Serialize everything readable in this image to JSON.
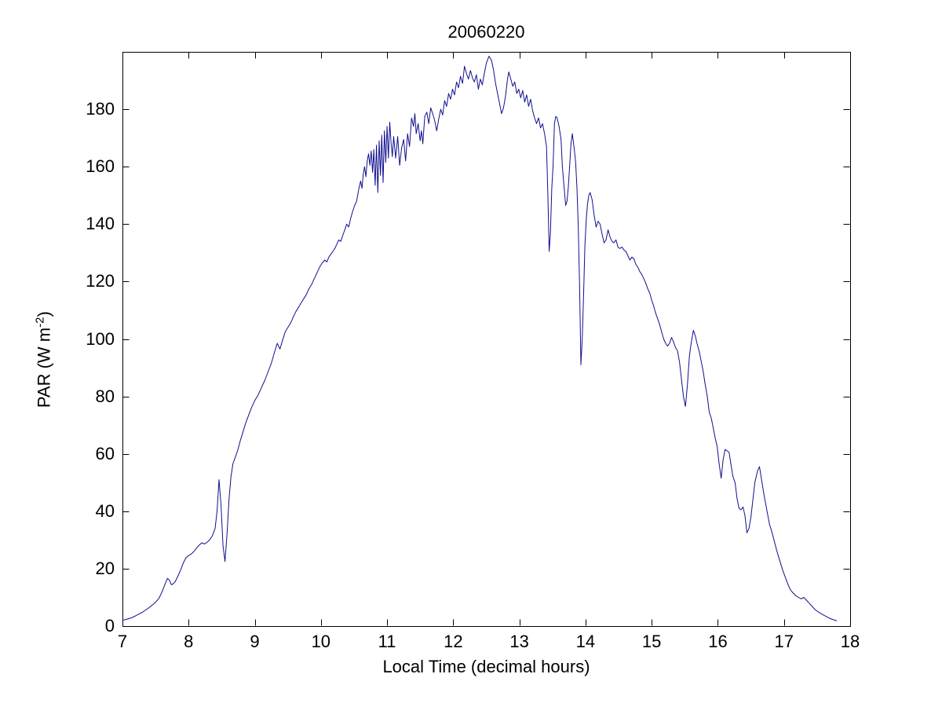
{
  "figure": {
    "title": "20060220",
    "xlabel": "Local Time (decimal hours)",
    "ylabel_main": "PAR (W m",
    "ylabel_sup": "-2",
    "ylabel_close": ")",
    "background_color": "#ffffff",
    "axis_color": "#000000",
    "line_color": "#10108e"
  },
  "chart_data": {
    "type": "line",
    "title": "20060220",
    "xlabel": "Local Time (decimal hours)",
    "ylabel": "PAR (W m^-2)",
    "xlim": [
      7,
      18
    ],
    "ylim": [
      0,
      200
    ],
    "xticks": [
      7,
      8,
      9,
      10,
      11,
      12,
      13,
      14,
      15,
      16,
      17,
      18
    ],
    "yticks": [
      0,
      20,
      40,
      60,
      80,
      100,
      120,
      140,
      160,
      180
    ],
    "grid": false,
    "box": true,
    "series": [
      {
        "name": "PAR",
        "color": "#10108e",
        "x": [
          7.0,
          7.05,
          7.1,
          7.15,
          7.2,
          7.25,
          7.3,
          7.35,
          7.4,
          7.45,
          7.5,
          7.55,
          7.6,
          7.65,
          7.68,
          7.71,
          7.74,
          7.77,
          7.8,
          7.84,
          7.88,
          7.92,
          7.96,
          8.0,
          8.04,
          8.08,
          8.12,
          8.16,
          8.2,
          8.24,
          8.28,
          8.32,
          8.36,
          8.4,
          8.43,
          8.46,
          8.49,
          8.52,
          8.55,
          8.58,
          8.61,
          8.64,
          8.67,
          8.7,
          8.74,
          8.78,
          8.82,
          8.86,
          8.9,
          8.95,
          9.0,
          9.05,
          9.1,
          9.15,
          9.2,
          9.25,
          9.3,
          9.34,
          9.38,
          9.42,
          9.46,
          9.5,
          9.54,
          9.58,
          9.62,
          9.66,
          9.7,
          9.74,
          9.78,
          9.82,
          9.86,
          9.9,
          9.94,
          9.98,
          10.02,
          10.06,
          10.09,
          10.12,
          10.15,
          10.18,
          10.21,
          10.24,
          10.27,
          10.3,
          10.33,
          10.36,
          10.39,
          10.42,
          10.45,
          10.48,
          10.51,
          10.54,
          10.57,
          10.6,
          10.62,
          10.64,
          10.66,
          10.68,
          10.7,
          10.72,
          10.74,
          10.76,
          10.78,
          10.8,
          10.82,
          10.84,
          10.86,
          10.88,
          10.9,
          10.92,
          10.94,
          10.96,
          10.98,
          11.0,
          11.02,
          11.04,
          11.06,
          11.08,
          11.1,
          11.13,
          11.16,
          11.19,
          11.22,
          11.25,
          11.28,
          11.31,
          11.34,
          11.37,
          11.4,
          11.42,
          11.44,
          11.47,
          11.5,
          11.52,
          11.54,
          11.57,
          11.6,
          11.63,
          11.66,
          11.69,
          11.72,
          11.75,
          11.78,
          11.81,
          11.84,
          11.87,
          11.9,
          11.93,
          11.96,
          11.99,
          12.02,
          12.05,
          12.08,
          12.11,
          12.14,
          12.17,
          12.2,
          12.23,
          12.26,
          12.29,
          12.32,
          12.35,
          12.38,
          12.41,
          12.44,
          12.47,
          12.5,
          12.54,
          12.58,
          12.61,
          12.64,
          12.67,
          12.7,
          12.73,
          12.76,
          12.79,
          12.82,
          12.84,
          12.87,
          12.9,
          12.93,
          12.96,
          12.99,
          13.02,
          13.05,
          13.08,
          13.11,
          13.14,
          13.17,
          13.2,
          13.23,
          13.26,
          13.29,
          13.32,
          13.35,
          13.38,
          13.41,
          13.43,
          13.45,
          13.47,
          13.49,
          13.51,
          13.53,
          13.55,
          13.57,
          13.6,
          13.63,
          13.65,
          13.67,
          13.7,
          13.72,
          13.74,
          13.76,
          13.78,
          13.8,
          13.83,
          13.85,
          13.87,
          13.89,
          13.91,
          13.93,
          13.95,
          13.97,
          13.99,
          14.01,
          14.03,
          14.05,
          14.07,
          14.1,
          14.13,
          14.16,
          14.19,
          14.22,
          14.25,
          14.28,
          14.31,
          14.34,
          14.37,
          14.4,
          14.43,
          14.46,
          14.49,
          14.52,
          14.55,
          14.58,
          14.61,
          14.64,
          14.67,
          14.7,
          14.73,
          14.76,
          14.79,
          14.82,
          14.85,
          14.88,
          14.91,
          14.94,
          14.97,
          15.0,
          15.03,
          15.06,
          15.09,
          15.12,
          15.15,
          15.18,
          15.21,
          15.24,
          15.27,
          15.3,
          15.33,
          15.36,
          15.39,
          15.42,
          15.45,
          15.48,
          15.51,
          15.54,
          15.57,
          15.6,
          15.63,
          15.66,
          15.69,
          15.72,
          15.75,
          15.78,
          15.81,
          15.84,
          15.87,
          15.9,
          15.93,
          15.96,
          15.99,
          16.02,
          16.05,
          16.08,
          16.11,
          16.14,
          16.17,
          16.2,
          16.23,
          16.26,
          16.29,
          16.32,
          16.35,
          16.38,
          16.41,
          16.44,
          16.47,
          16.5,
          16.53,
          16.56,
          16.6,
          16.63,
          16.66,
          16.7,
          16.74,
          16.78,
          16.82,
          16.86,
          16.9,
          16.94,
          16.98,
          17.02,
          17.06,
          17.1,
          17.14,
          17.18,
          17.22,
          17.26,
          17.3,
          17.34,
          17.38,
          17.42,
          17.46,
          17.5,
          17.55,
          17.6,
          17.65,
          17.7,
          17.75,
          17.8
        ],
        "y": [
          2.0,
          2.3,
          2.6,
          3.0,
          3.6,
          4.2,
          4.8,
          5.6,
          6.4,
          7.3,
          8.3,
          9.6,
          12.0,
          15.0,
          16.6,
          16.0,
          14.4,
          14.8,
          15.6,
          17.5,
          19.6,
          22.0,
          23.8,
          24.6,
          25.1,
          26.0,
          27.2,
          28.2,
          29.0,
          28.6,
          29.2,
          30.1,
          31.5,
          34.0,
          40.0,
          51.0,
          42.0,
          28.0,
          22.5,
          32.0,
          44.0,
          52.0,
          56.5,
          58.5,
          61.0,
          64.5,
          67.5,
          70.5,
          73.0,
          76.0,
          78.5,
          80.5,
          83.0,
          85.5,
          88.5,
          91.5,
          95.5,
          98.5,
          96.5,
          99.5,
          102.5,
          104.0,
          105.5,
          107.5,
          109.5,
          111.0,
          112.5,
          114.0,
          115.5,
          117.5,
          119.0,
          121.0,
          123.0,
          125.0,
          126.5,
          127.5,
          126.8,
          128.5,
          129.5,
          130.5,
          131.5,
          133.0,
          134.5,
          134.0,
          136.0,
          138.0,
          140.0,
          139.0,
          142.0,
          144.5,
          146.5,
          148.0,
          152.0,
          155.0,
          152.5,
          157.5,
          160.0,
          156.5,
          162.0,
          164.5,
          160.5,
          165.5,
          158.0,
          166.0,
          153.5,
          167.5,
          151.0,
          169.0,
          157.0,
          171.0,
          154.5,
          172.5,
          161.5,
          174.0,
          163.0,
          175.5,
          168.5,
          163.5,
          170.5,
          163.0,
          170.5,
          160.5,
          166.5,
          169.5,
          162.0,
          171.5,
          167.0,
          177.0,
          174.0,
          178.5,
          171.5,
          175.0,
          169.0,
          172.5,
          168.0,
          177.5,
          179.0,
          175.0,
          180.5,
          178.5,
          176.0,
          172.5,
          176.5,
          180.0,
          178.0,
          183.0,
          181.0,
          185.5,
          183.5,
          187.0,
          185.0,
          189.5,
          187.5,
          191.5,
          189.0,
          195.0,
          192.5,
          190.5,
          193.5,
          191.0,
          189.5,
          192.0,
          187.0,
          190.5,
          188.5,
          192.5,
          196.0,
          198.5,
          197.0,
          193.5,
          189.0,
          185.5,
          182.0,
          178.5,
          180.5,
          184.5,
          190.5,
          193.0,
          190.5,
          188.0,
          189.5,
          185.5,
          187.0,
          184.0,
          186.5,
          182.5,
          185.0,
          181.0,
          183.5,
          179.5,
          177.0,
          175.0,
          177.0,
          173.5,
          175.0,
          171.5,
          167.0,
          150.5,
          130.5,
          137.0,
          152.5,
          160.5,
          175.0,
          177.5,
          177.0,
          174.0,
          169.5,
          160.0,
          154.5,
          146.5,
          148.0,
          153.0,
          160.5,
          168.0,
          171.5,
          166.0,
          161.5,
          152.5,
          139.5,
          119.0,
          91.0,
          100.0,
          115.0,
          132.5,
          141.5,
          147.0,
          150.0,
          151.0,
          148.5,
          143.0,
          139.0,
          141.0,
          140.0,
          136.5,
          133.5,
          134.5,
          138.0,
          135.5,
          134.0,
          133.5,
          134.5,
          132.0,
          131.5,
          132.0,
          131.0,
          130.5,
          129.0,
          127.5,
          128.5,
          128.0,
          126.0,
          125.0,
          123.5,
          122.5,
          121.0,
          119.5,
          117.5,
          116.0,
          113.5,
          111.5,
          109.0,
          107.0,
          105.0,
          102.5,
          100.0,
          98.5,
          97.5,
          98.5,
          100.5,
          99.0,
          97.0,
          96.0,
          92.0,
          86.0,
          80.0,
          76.5,
          84.0,
          94.0,
          99.0,
          103.0,
          101.0,
          98.0,
          95.5,
          92.0,
          88.5,
          84.0,
          80.0,
          74.5,
          72.5,
          69.0,
          65.5,
          62.5,
          56.5,
          51.5,
          58.0,
          61.5,
          61.0,
          60.5,
          56.0,
          52.0,
          50.0,
          44.5,
          41.0,
          40.5,
          41.5,
          38.5,
          32.5,
          34.0,
          38.0,
          44.0,
          50.0,
          54.0,
          55.5,
          51.0,
          45.5,
          40.5,
          35.5,
          32.5,
          29.0,
          25.5,
          22.5,
          19.5,
          17.0,
          14.5,
          12.5,
          11.5,
          10.5,
          10.0,
          9.5,
          10.0,
          9.0,
          8.0,
          7.0,
          6.0,
          5.2,
          4.5,
          3.8,
          3.2,
          2.6,
          2.2,
          1.8
        ]
      }
    ]
  }
}
